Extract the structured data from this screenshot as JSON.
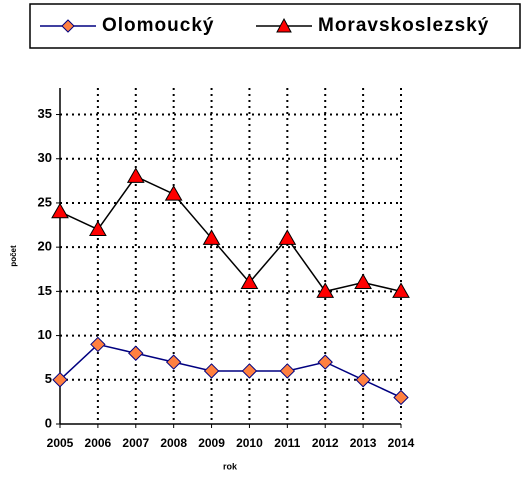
{
  "chart_data": {
    "type": "line",
    "x": [
      2005,
      2006,
      2007,
      2008,
      2009,
      2010,
      2011,
      2012,
      2013,
      2014
    ],
    "xlim": [
      2005,
      2014
    ],
    "xticks": [
      2005,
      2006,
      2007,
      2008,
      2009,
      2010,
      2011,
      2012,
      2013,
      2014
    ],
    "ylim": [
      0,
      38
    ],
    "yticks": [
      0,
      5,
      10,
      15,
      20,
      25,
      30,
      35
    ],
    "x_label": "rok",
    "y_label": "počet",
    "grid": true,
    "legend": "top",
    "series": [
      {
        "name": "Olomoucký",
        "color": "#000080",
        "marker": "diamond",
        "marker_color": "#ff8040",
        "values": [
          5,
          9,
          8,
          7,
          6,
          6,
          6,
          7,
          5,
          3
        ]
      },
      {
        "name": "Moravskoslezský",
        "color": "#000000",
        "marker": "triangle",
        "marker_color": "#ff0000",
        "values": [
          24,
          22,
          28,
          26,
          21,
          16,
          21,
          15,
          16,
          15
        ]
      }
    ]
  }
}
